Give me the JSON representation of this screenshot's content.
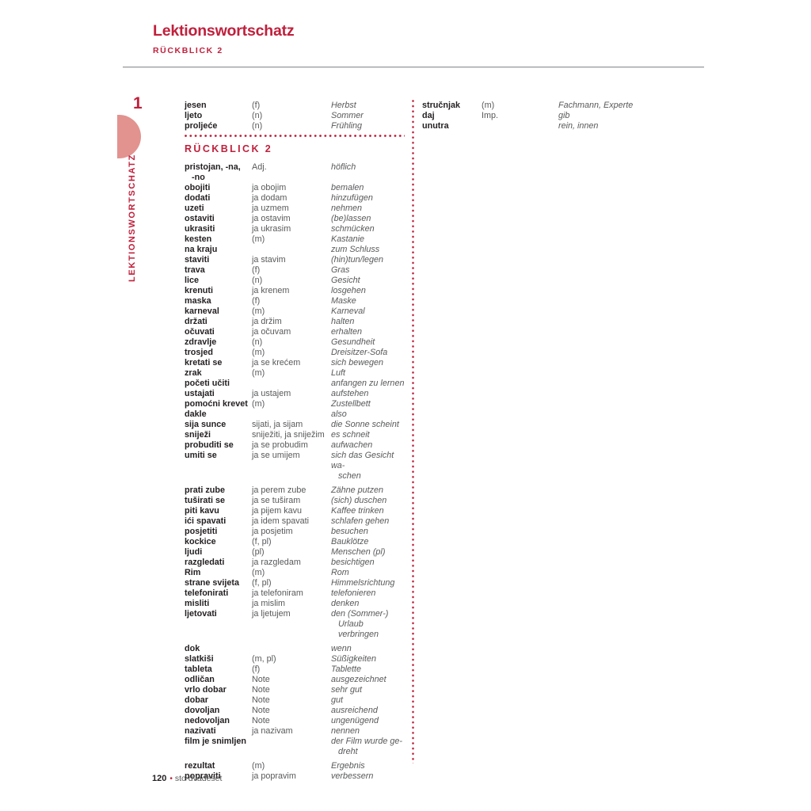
{
  "page": {
    "title": "Lektionswortschatz",
    "subtitle": "RÜCKBLICK 2",
    "footer": {
      "page_number": "120",
      "separator": "•",
      "page_word": "sto dvadeset"
    }
  },
  "sidebar": {
    "chapter_number": "1",
    "vertical_label": "LEKTIONSWORTSCHATZ"
  },
  "colors": {
    "accent_red": "#c0203c",
    "pink_semicircle": "#e2938f",
    "word_text": "#231f20",
    "secondary_text": "#58595b"
  },
  "left_column": {
    "intro_rows": [
      {
        "hr": "jesen",
        "gram": "(f)",
        "de": "Herbst"
      },
      {
        "hr": "ljeto",
        "gram": "(n)",
        "de": "Sommer"
      },
      {
        "hr": "proljeće",
        "gram": "(n)",
        "de": "Frühling"
      }
    ],
    "section_header": "RÜCKBLICK 2",
    "rows": [
      {
        "hr": "pristojan, -na,",
        "hr2": "-no",
        "gram": "Adj.",
        "de": "höflich"
      },
      {
        "hr": "obojiti",
        "gram": "ja obojim",
        "de": "bemalen"
      },
      {
        "hr": "dodati",
        "gram": "ja dodam",
        "de": "hinzufügen"
      },
      {
        "hr": "uzeti",
        "gram": "ja uzmem",
        "de": "nehmen"
      },
      {
        "hr": "ostaviti",
        "gram": "ja ostavim",
        "de": "(be)lassen"
      },
      {
        "hr": "ukrasiti",
        "gram": "ja ukrasim",
        "de": "schmücken"
      },
      {
        "hr": "kesten",
        "gram": "(m)",
        "de": "Kastanie"
      },
      {
        "hr": "na kraju",
        "gram": "",
        "de": "zum Schluss"
      },
      {
        "hr": "staviti",
        "gram": "ja stavim",
        "de": "(hin)tun/legen"
      },
      {
        "hr": "trava",
        "gram": "(f)",
        "de": "Gras"
      },
      {
        "hr": "lice",
        "gram": "(n)",
        "de": "Gesicht"
      },
      {
        "hr": "krenuti",
        "gram": "ja krenem",
        "de": "losgehen"
      },
      {
        "hr": "maska",
        "gram": "(f)",
        "de": "Maske"
      },
      {
        "hr": "karneval",
        "gram": "(m)",
        "de": "Karneval"
      },
      {
        "hr": "držati",
        "gram": "ja držim",
        "de": "halten"
      },
      {
        "hr": "očuvati",
        "gram": "ja očuvam",
        "de": "erhalten"
      },
      {
        "hr": "zdravlje",
        "gram": "(n)",
        "de": "Gesundheit"
      },
      {
        "hr": "trosjed",
        "gram": "(m)",
        "de": "Dreisitzer-Sofa"
      },
      {
        "hr": "kretati se",
        "gram": "ja se krećem",
        "de": "sich bewegen"
      },
      {
        "hr": "zrak",
        "gram": "(m)",
        "de": "Luft"
      },
      {
        "hr": "početi učiti",
        "gram": "",
        "de": "anfangen zu lernen"
      },
      {
        "hr": "ustajati",
        "gram": "ja ustajem",
        "de": "aufstehen"
      },
      {
        "hr": "pomoćni krevet",
        "gram": "(m)",
        "de": "Zustellbett"
      },
      {
        "hr": "dakle",
        "gram": "",
        "de": "also"
      },
      {
        "hr": "sija sunce",
        "gram": "sijati, ja sijam",
        "de": "die Sonne scheint"
      },
      {
        "hr": "sniježi",
        "gram": "sniježiti, ja sniježim",
        "de": "es schneit"
      },
      {
        "hr": "probuditi se",
        "gram": "ja se probudim",
        "de": "aufwachen"
      },
      {
        "hr": "umiti se",
        "gram": "ja se umijem",
        "de": "sich das Gesicht wa-",
        "de2": "schen"
      },
      {
        "hr": "prati zube",
        "gram": "ja perem zube",
        "de": "Zähne putzen",
        "gap": true
      },
      {
        "hr": "tuširati se",
        "gram": "ja se tuširam",
        "de": "(sich) duschen"
      },
      {
        "hr": "piti kavu",
        "gram": "ja pijem kavu",
        "de": "Kaffee trinken"
      },
      {
        "hr": "ići spavati",
        "gram": "ja idem spavati",
        "de": "schlafen gehen"
      },
      {
        "hr": "posjetiti",
        "gram": "ja posjetim",
        "de": "besuchen"
      },
      {
        "hr": "kockice",
        "gram": "(f, pl)",
        "de": "Bauklötze"
      },
      {
        "hr": "ljudi",
        "gram": "(pl)",
        "de": "Menschen (pl)"
      },
      {
        "hr": "razgledati",
        "gram": "ja razgledam",
        "de": "besichtigen"
      },
      {
        "hr": "Rim",
        "gram": "(m)",
        "de": "Rom"
      },
      {
        "hr": "strane svijeta",
        "gram": "(f, pl)",
        "de": "Himmelsrichtung"
      },
      {
        "hr": "telefonirati",
        "gram": "ja telefoniram",
        "de": "telefonieren"
      },
      {
        "hr": "misliti",
        "gram": "ja mislim",
        "de": "denken"
      },
      {
        "hr": "ljetovati",
        "gram": "ja ljetujem",
        "de": "den (Sommer-)",
        "de2": "Urlaub verbringen"
      },
      {
        "hr": "dok",
        "gram": "",
        "de": "wenn",
        "gap": true
      },
      {
        "hr": "slatkiši",
        "gram": "(m, pl)",
        "de": "Süßigkeiten"
      },
      {
        "hr": "tableta",
        "gram": "(f)",
        "de": "Tablette"
      },
      {
        "hr": "odličan",
        "gram": "Note",
        "de": "ausgezeichnet"
      },
      {
        "hr": "vrlo dobar",
        "gram": "Note",
        "de": "sehr gut"
      },
      {
        "hr": "dobar",
        "gram": "Note",
        "de": "gut"
      },
      {
        "hr": "dovoljan",
        "gram": "Note",
        "de": "ausreichend"
      },
      {
        "hr": "nedovoljan",
        "gram": "Note",
        "de": "ungenügend"
      },
      {
        "hr": "nazivati",
        "gram": "ja nazivam",
        "de": "nennen"
      },
      {
        "hr": "film je snimljen",
        "gram": "",
        "de": "der Film wurde ge-",
        "de2": "dreht"
      },
      {
        "hr": "rezultat",
        "gram": "(m)",
        "de": "Ergebnis",
        "gap": true
      },
      {
        "hr": "popraviti",
        "gram": "ja popravim",
        "de": "verbessern"
      }
    ]
  },
  "right_column": {
    "rows": [
      {
        "hr": "stručnjak",
        "gram": "(m)",
        "de": "Fachmann, Experte"
      },
      {
        "hr": "daj",
        "gram": "Imp.",
        "de": "gib"
      },
      {
        "hr": "unutra",
        "gram": "",
        "de": "rein, innen"
      }
    ]
  }
}
